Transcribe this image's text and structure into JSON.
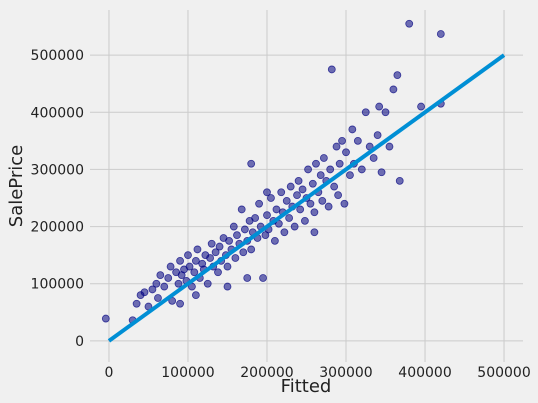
{
  "chart_data": {
    "type": "scatter",
    "x_label": "Fitted",
    "y_label": "SalePrice",
    "xlim": [
      -24000,
      524000
    ],
    "ylim": [
      -37000,
      579000
    ],
    "xticks": [
      0,
      100000,
      200000,
      300000,
      400000,
      500000
    ],
    "yticks": [
      0,
      100000,
      200000,
      300000,
      400000,
      500000
    ],
    "grid": true,
    "color": "#000080",
    "x": [
      -4000,
      30000,
      35000,
      40000,
      45000,
      50000,
      55000,
      60000,
      62000,
      65000,
      70000,
      75000,
      78000,
      80000,
      85000,
      88000,
      90000,
      92000,
      95000,
      98000,
      100000,
      102000,
      105000,
      108000,
      110000,
      112000,
      115000,
      118000,
      120000,
      122000,
      125000,
      128000,
      130000,
      132000,
      135000,
      138000,
      140000,
      142000,
      145000,
      148000,
      150000,
      152000,
      155000,
      158000,
      160000,
      162000,
      165000,
      168000,
      170000,
      172000,
      175000,
      178000,
      180000,
      182000,
      185000,
      188000,
      190000,
      192000,
      195000,
      198000,
      200000,
      202000,
      205000,
      208000,
      210000,
      212000,
      215000,
      218000,
      220000,
      222000,
      225000,
      228000,
      230000,
      232000,
      235000,
      238000,
      240000,
      242000,
      245000,
      248000,
      250000,
      252000,
      255000,
      258000,
      260000,
      262000,
      265000,
      268000,
      270000,
      272000,
      275000,
      278000,
      280000,
      282000,
      285000,
      288000,
      290000,
      292000,
      295000,
      298000,
      300000,
      305000,
      308000,
      310000,
      315000,
      320000,
      325000,
      330000,
      335000,
      340000,
      342000,
      345000,
      350000,
      355000,
      360000,
      365000,
      368000,
      380000,
      395000,
      420000,
      420000,
      180000,
      175000,
      110000,
      90000,
      260000,
      150000,
      200000
    ],
    "values": [
      39000,
      36000,
      65000,
      80000,
      85000,
      60000,
      90000,
      100000,
      75000,
      115000,
      95000,
      110000,
      130000,
      70000,
      120000,
      100000,
      140000,
      115000,
      125000,
      105000,
      150000,
      130000,
      95000,
      120000,
      140000,
      160000,
      110000,
      135000,
      125000,
      150000,
      100000,
      145000,
      170000,
      130000,
      155000,
      120000,
      165000,
      140000,
      180000,
      150000,
      130000,
      175000,
      160000,
      200000,
      145000,
      185000,
      170000,
      230000,
      155000,
      195000,
      175000,
      210000,
      160000,
      190000,
      215000,
      180000,
      240000,
      200000,
      110000,
      185000,
      220000,
      195000,
      250000,
      210000,
      175000,
      230000,
      205000,
      260000,
      225000,
      190000,
      245000,
      215000,
      270000,
      235000,
      200000,
      255000,
      280000,
      230000,
      265000,
      210000,
      250000,
      300000,
      240000,
      275000,
      225000,
      310000,
      260000,
      290000,
      245000,
      320000,
      280000,
      235000,
      300000,
      475000,
      270000,
      340000,
      255000,
      310000,
      350000,
      240000,
      330000,
      290000,
      370000,
      310000,
      350000,
      300000,
      400000,
      340000,
      320000,
      360000,
      410000,
      295000,
      400000,
      340000,
      440000,
      465000,
      280000,
      555000,
      410000,
      415000,
      537000,
      310000,
      110000,
      80000,
      65000,
      190000,
      95000,
      260000
    ],
    "line": {
      "x": [
        0,
        500000
      ],
      "values": [
        0,
        500000
      ],
      "color": "#008fd5"
    }
  }
}
